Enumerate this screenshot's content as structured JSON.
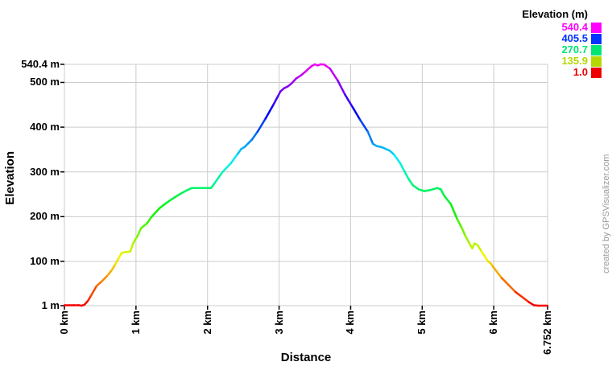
{
  "page": {
    "watermark": "created by GPSVisualizer.com",
    "watermark_color": "#999999",
    "background": "#ffffff"
  },
  "chart_data": {
    "type": "line",
    "title": "",
    "xlabel": "Distance",
    "ylabel": "Elevation",
    "xlim": [
      0,
      6.752
    ],
    "ylim": [
      1,
      540.4
    ],
    "grid": true,
    "grid_color": "#cccccc",
    "tick_color": "#000000",
    "line_width": 2.5,
    "x_ticks": [
      {
        "value": 0,
        "label": "0 km"
      },
      {
        "value": 1,
        "label": "1 km"
      },
      {
        "value": 2,
        "label": "2 km"
      },
      {
        "value": 3,
        "label": "3 km"
      },
      {
        "value": 4,
        "label": "4 km"
      },
      {
        "value": 5,
        "label": "5 km"
      },
      {
        "value": 6,
        "label": "6 km"
      },
      {
        "value": 6.752,
        "label": "6.752 km"
      }
    ],
    "y_ticks": [
      {
        "value": 540.4,
        "label": "540.4 m"
      },
      {
        "value": 500,
        "label": "500 m"
      },
      {
        "value": 400,
        "label": "400 m"
      },
      {
        "value": 300,
        "label": "300 m"
      },
      {
        "value": 200,
        "label": "200 m"
      },
      {
        "value": 100,
        "label": "100 m"
      },
      {
        "value": 1,
        "label": "1 m"
      }
    ],
    "legend": {
      "title": "Elevation (m)",
      "position": "top-right",
      "entries": [
        {
          "label": "540.4",
          "color": "#ff00ff"
        },
        {
          "label": "405.5",
          "color": "#0033ff"
        },
        {
          "label": "270.7",
          "color": "#00e673"
        },
        {
          "label": "135.9",
          "color": "#b3d900"
        },
        {
          "label": "1.0",
          "color": "#ee0000"
        }
      ]
    },
    "color_mapping": {
      "description": "line is colored by elevation, hue 0deg (red) at 1 m to hue 300deg (magenta) at 540.4 m",
      "min_elevation": 1,
      "max_elevation": 540.4,
      "min_hue": 0,
      "max_hue": 300
    },
    "series": [
      {
        "name": "elevation-profile",
        "points_km_m": [
          [
            0.0,
            2
          ],
          [
            0.13,
            2
          ],
          [
            0.2,
            2
          ],
          [
            0.24,
            1
          ],
          [
            0.28,
            3
          ],
          [
            0.33,
            12
          ],
          [
            0.37,
            23
          ],
          [
            0.45,
            45
          ],
          [
            0.52,
            55
          ],
          [
            0.6,
            68
          ],
          [
            0.66,
            80
          ],
          [
            0.71,
            93
          ],
          [
            0.76,
            108
          ],
          [
            0.8,
            119
          ],
          [
            0.86,
            121
          ],
          [
            0.92,
            122
          ],
          [
            0.96,
            140
          ],
          [
            0.99,
            149
          ],
          [
            1.02,
            156
          ],
          [
            1.07,
            174
          ],
          [
            1.16,
            186
          ],
          [
            1.21,
            198
          ],
          [
            1.33,
            219
          ],
          [
            1.42,
            230
          ],
          [
            1.5,
            239
          ],
          [
            1.61,
            250
          ],
          [
            1.7,
            258
          ],
          [
            1.78,
            264
          ],
          [
            2.05,
            264
          ],
          [
            2.1,
            275
          ],
          [
            2.21,
            300
          ],
          [
            2.33,
            320
          ],
          [
            2.42,
            340
          ],
          [
            2.47,
            351
          ],
          [
            2.52,
            356
          ],
          [
            2.57,
            364
          ],
          [
            2.62,
            372
          ],
          [
            2.7,
            390
          ],
          [
            2.81,
            419
          ],
          [
            2.92,
            450
          ],
          [
            2.98,
            468
          ],
          [
            3.02,
            480
          ],
          [
            3.07,
            487
          ],
          [
            3.12,
            491
          ],
          [
            3.17,
            497
          ],
          [
            3.24,
            509
          ],
          [
            3.3,
            515
          ],
          [
            3.36,
            523
          ],
          [
            3.45,
            536
          ],
          [
            3.5,
            540.4
          ],
          [
            3.54,
            538
          ],
          [
            3.58,
            540.4
          ],
          [
            3.63,
            540
          ],
          [
            3.71,
            531
          ],
          [
            3.82,
            504
          ],
          [
            3.92,
            473
          ],
          [
            4.03,
            444
          ],
          [
            4.13,
            417
          ],
          [
            4.24,
            390
          ],
          [
            4.31,
            363
          ],
          [
            4.36,
            358
          ],
          [
            4.44,
            355
          ],
          [
            4.48,
            352
          ],
          [
            4.55,
            347
          ],
          [
            4.61,
            338
          ],
          [
            4.69,
            320
          ],
          [
            4.75,
            302
          ],
          [
            4.81,
            284
          ],
          [
            4.87,
            270
          ],
          [
            4.95,
            261
          ],
          [
            5.03,
            257
          ],
          [
            5.1,
            259
          ],
          [
            5.17,
            262
          ],
          [
            5.21,
            264
          ],
          [
            5.26,
            261
          ],
          [
            5.31,
            246
          ],
          [
            5.4,
            228
          ],
          [
            5.49,
            194
          ],
          [
            5.55,
            176
          ],
          [
            5.6,
            158
          ],
          [
            5.66,
            140
          ],
          [
            5.7,
            129
          ],
          [
            5.73,
            140
          ],
          [
            5.77,
            137
          ],
          [
            5.83,
            122
          ],
          [
            5.92,
            100
          ],
          [
            5.96,
            95
          ],
          [
            5.99,
            88
          ],
          [
            6.11,
            63
          ],
          [
            6.3,
            32
          ],
          [
            6.49,
            9
          ],
          [
            6.56,
            2
          ],
          [
            6.62,
            1
          ],
          [
            6.752,
            1
          ]
        ]
      }
    ]
  }
}
